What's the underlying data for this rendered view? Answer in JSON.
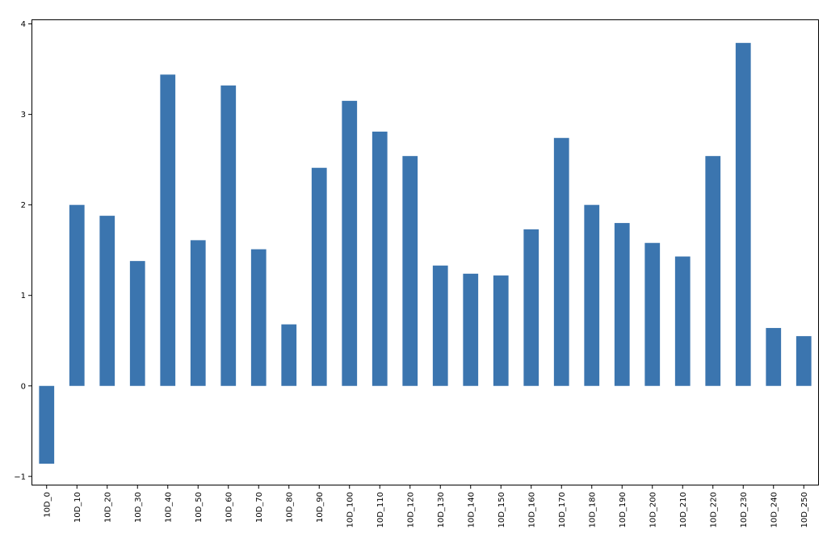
{
  "chart_data": {
    "type": "bar",
    "title": "",
    "xlabel": "",
    "ylabel": "",
    "categories": [
      "10D_0",
      "10D_10",
      "10D_20",
      "10D_30",
      "10D_40",
      "10D_50",
      "10D_60",
      "10D_70",
      "10D_80",
      "10D_90",
      "10D_100",
      "10D_110",
      "10D_120",
      "10D_130",
      "10D_140",
      "10D_150",
      "10D_160",
      "10D_170",
      "10D_180",
      "10D_190",
      "10D_200",
      "10D_210",
      "10D_220",
      "10D_230",
      "10D_240",
      "10D_250"
    ],
    "values": [
      -0.86,
      2.0,
      1.88,
      1.38,
      3.44,
      1.61,
      3.32,
      1.51,
      0.68,
      2.41,
      3.15,
      2.81,
      2.54,
      1.33,
      1.24,
      1.22,
      1.73,
      2.74,
      2.0,
      1.8,
      1.58,
      1.43,
      2.54,
      3.79,
      0.64,
      0.55
    ],
    "ylim": [
      -1.1,
      4.05
    ],
    "yticks": [
      -1,
      0,
      1,
      2,
      3,
      4
    ],
    "ytick_labels": [
      "−1",
      "0",
      "1",
      "2",
      "3",
      "4"
    ],
    "bar_color": "#3b75af",
    "grid": false,
    "legend": "none"
  }
}
